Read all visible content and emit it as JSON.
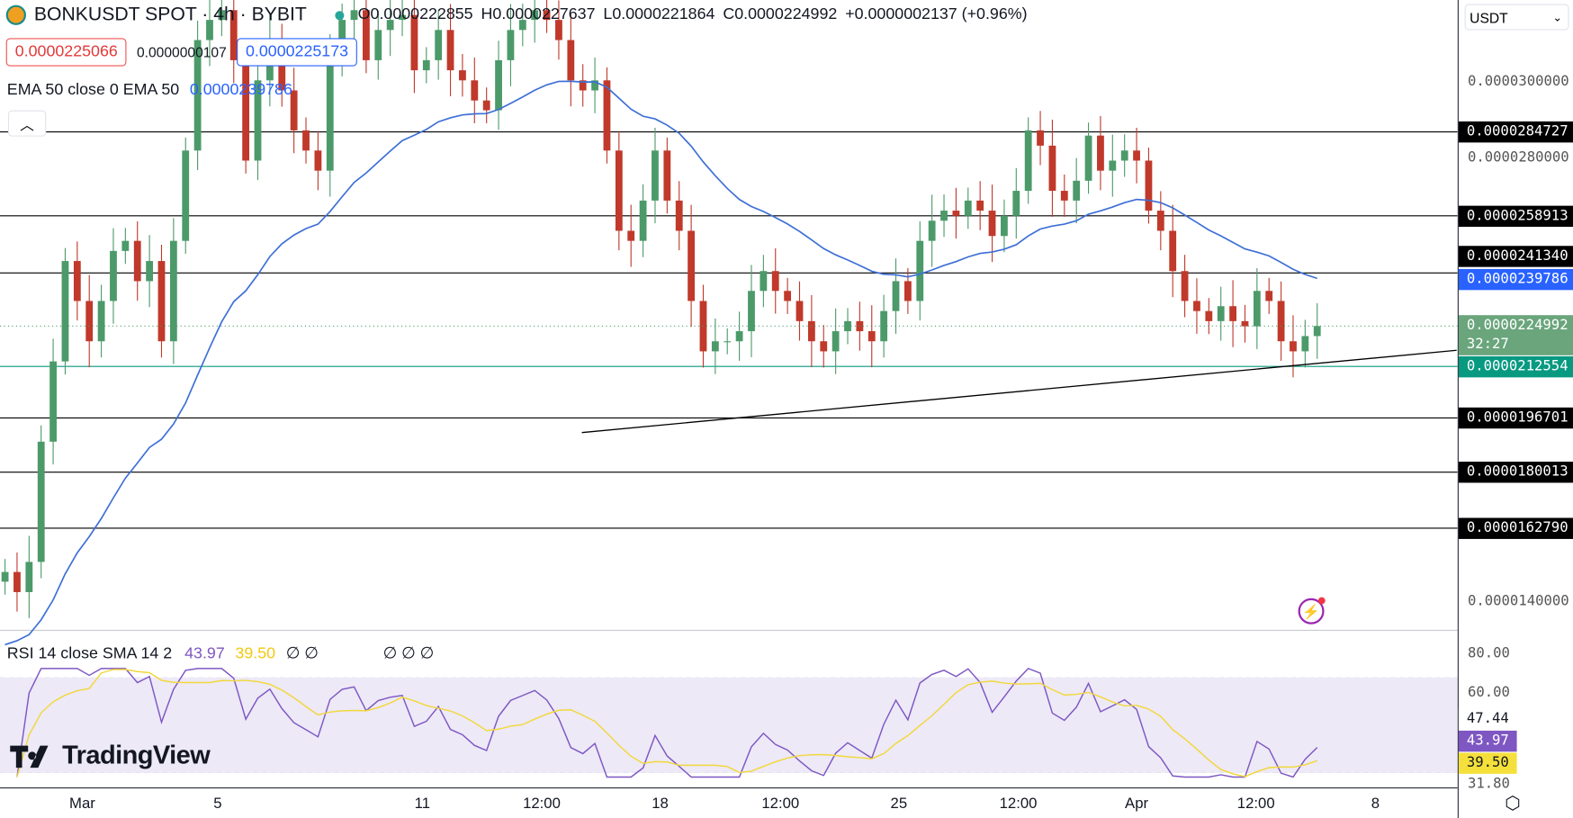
{
  "header": {
    "symbol": "BONKUSDT SPOT · 4h · BYBIT",
    "open": "O0.0000222855",
    "high": "H0.0000227637",
    "low": "L0.0000221864",
    "close": "C0.0000224992",
    "change": "+0.0000002137 (+0.96%)",
    "sell_price": "0.0000225066",
    "spread": "0.0000000107",
    "buy_price": "0.0000225173"
  },
  "ema_legend": {
    "label": "EMA 50 close 0 EMA 50",
    "value": "0.0000239786"
  },
  "rsi_legend": {
    "label": "RSI 14 close SMA 14 2",
    "rsi": "43.97",
    "sma": "39.50",
    "empty1": "∅ ∅",
    "empty2": "∅ ∅ ∅"
  },
  "currency": "USDT",
  "logo_text": "TradingView",
  "colors": {
    "up": "#26a69a",
    "down": "#ef5350",
    "candle_up": "#4c9a6a",
    "candle_down": "#c0392b",
    "ema": "#3d6fd6",
    "rsi": "#7e57c2",
    "rsi_sma": "#f2d83a",
    "band": "#ede9f7",
    "teal": "#089981"
  },
  "icons": {
    "collapse": "chevron-up-icon",
    "settings": "settings-hex-icon",
    "alert": "lightning-icon",
    "currency": "chevron-down-icon"
  },
  "chart_data": {
    "type": "candlestick",
    "symbol": "BONKUSDT",
    "interval": "4h",
    "ylim": [
      1.3e-05,
      3.25e-05
    ],
    "price_ticks": [
      "0.0000300000",
      "0.0000280000",
      "0.0000140000"
    ],
    "time_ticks": [
      "Mar",
      "5",
      "11",
      "12:00",
      "18",
      "12:00",
      "25",
      "12:00",
      "Apr",
      "12:00",
      "8"
    ],
    "closes": [
      1.493e-05,
      1.431e-05,
      1.524e-05,
      1.894e-05,
      2.141e-05,
      2.45e-05,
      2.327e-05,
      2.203e-05,
      2.327e-05,
      2.481e-05,
      2.512e-05,
      2.388e-05,
      2.45e-05,
      2.203e-05,
      2.512e-05,
      2.79e-05,
      3.13e-05,
      3.192e-05,
      3.222e-05,
      3.068e-05,
      2.759e-05,
      3.006e-05,
      3.13e-05,
      2.975e-05,
      2.852e-05,
      2.79e-05,
      2.728e-05,
      3.068e-05,
      3.192e-05,
      3.222e-05,
      3.068e-05,
      3.161e-05,
      3.192e-05,
      3.207e-05,
      3.037e-05,
      3.068e-05,
      3.161e-05,
      3.037e-05,
      3.006e-05,
      2.944e-05,
      2.914e-05,
      3.068e-05,
      3.161e-05,
      3.192e-05,
      3.222e-05,
      3.192e-05,
      3.13e-05,
      3.006e-05,
      2.975e-05,
      3.006e-05,
      2.79e-05,
      2.543e-05,
      2.512e-05,
      2.636e-05,
      2.79e-05,
      2.636e-05,
      2.543e-05,
      2.327e-05,
      2.172e-05,
      2.203e-05,
      2.203e-05,
      2.234e-05,
      2.358e-05,
      2.419e-05,
      2.358e-05,
      2.327e-05,
      2.265e-05,
      2.203e-05,
      2.172e-05,
      2.234e-05,
      2.265e-05,
      2.234e-05,
      2.203e-05,
      2.296e-05,
      2.388e-05,
      2.327e-05,
      2.512e-05,
      2.574e-05,
      2.605e-05,
      2.589e-05,
      2.636e-05,
      2.605e-05,
      2.527e-05,
      2.589e-05,
      2.666e-05,
      2.852e-05,
      2.805e-05,
      2.666e-05,
      2.636e-05,
      2.697e-05,
      2.836e-05,
      2.728e-05,
      2.759e-05,
      2.79e-05,
      2.759e-05,
      2.605e-05,
      2.543e-05,
      2.419e-05,
      2.327e-05,
      2.296e-05,
      2.265e-05,
      2.311e-05,
      2.265e-05,
      2.249e-05,
      2.358e-05,
      2.327e-05,
      2.203e-05,
      2.172e-05,
      2.219e-05,
      2.24992e-05
    ],
    "levels": [
      {
        "value": "0.0000284727",
        "color": "#000000"
      },
      {
        "value": "0.0000258913",
        "color": "#000000"
      },
      {
        "value": "0.0000241340",
        "color": "#000000"
      },
      {
        "value": "0.0000212554",
        "color": "#089981"
      },
      {
        "value": "0.0000196701",
        "color": "#000000"
      },
      {
        "value": "0.0000180013",
        "color": "#000000"
      },
      {
        "value": "0.0000162790",
        "color": "#000000"
      }
    ],
    "ema": {
      "period": 50,
      "last": "0.0000239786"
    },
    "last_price": {
      "value": "0.0000224992",
      "countdown": "32:27"
    },
    "rsi": {
      "period": 14,
      "ticks": [
        "80.00",
        "60.00",
        "31.80"
      ],
      "band": [
        30,
        70
      ],
      "labels": [
        "47.44",
        "43.97",
        "39.50"
      ]
    }
  }
}
